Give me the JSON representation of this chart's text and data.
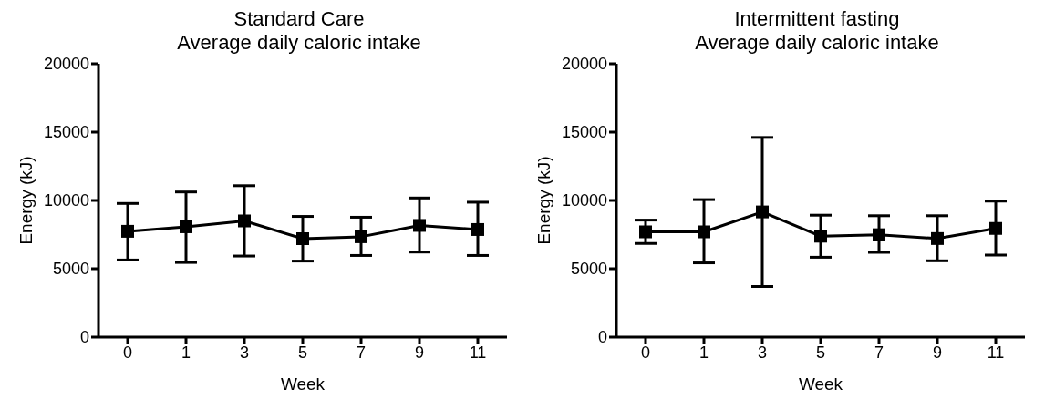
{
  "chart_data": [
    {
      "type": "line",
      "title": "Standard Care",
      "subtitle": "Average daily caloric intake",
      "xlabel": "Week",
      "ylabel": "Energy (kJ)",
      "categories": [
        "0",
        "1",
        "3",
        "5",
        "7",
        "9",
        "11"
      ],
      "values": [
        7740,
        8070,
        8500,
        7200,
        7340,
        8170,
        7870
      ],
      "errors": [
        [
          5640,
          9780
        ],
        [
          5460,
          10620
        ],
        [
          5930,
          11080
        ],
        [
          5560,
          8830
        ],
        [
          5970,
          8770
        ],
        [
          6220,
          10180
        ],
        [
          5970,
          9870
        ]
      ],
      "color": "#000000",
      "marker": "square",
      "line_style": "solid",
      "ylim": [
        0,
        20000
      ],
      "yticks": [
        0,
        5000,
        10000,
        15000,
        20000
      ],
      "grid": false,
      "legend": false
    },
    {
      "type": "line",
      "title": "Intermittent fasting",
      "subtitle": "Average daily caloric intake",
      "xlabel": "Week",
      "ylabel": "Energy (kJ)",
      "categories": [
        "0",
        "1",
        "3",
        "5",
        "7",
        "9",
        "11"
      ],
      "values": [
        7700,
        7700,
        9160,
        7380,
        7490,
        7210,
        7950
      ],
      "errors": [
        [
          6850,
          8560
        ],
        [
          5430,
          10060
        ],
        [
          3700,
          14610
        ],
        [
          5840,
          8920
        ],
        [
          6200,
          8880
        ],
        [
          5580,
          8880
        ],
        [
          6000,
          9950
        ]
      ],
      "color": "#000000",
      "marker": "square",
      "line_style": "solid",
      "ylim": [
        0,
        20000
      ],
      "yticks": [
        0,
        5000,
        10000,
        15000,
        20000
      ],
      "grid": false,
      "legend": false
    }
  ]
}
